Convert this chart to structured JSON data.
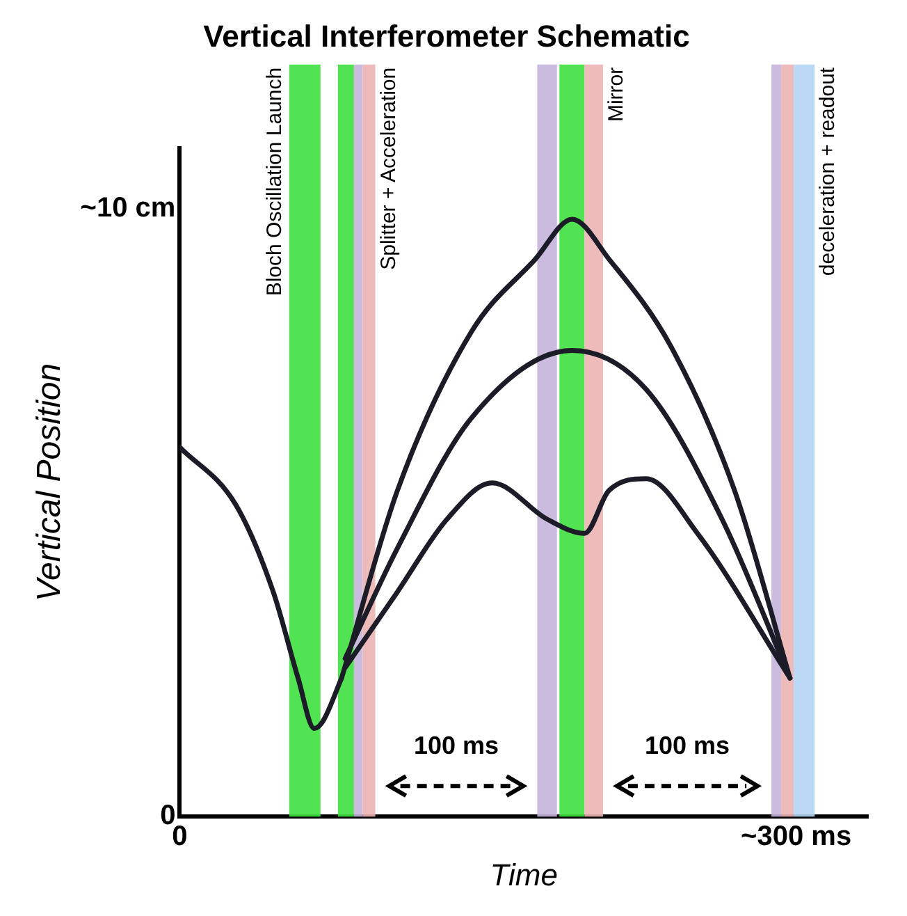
{
  "chart_data": {
    "type": "line",
    "title": "Vertical Interferometer Schematic",
    "xlabel": "Time",
    "ylabel": "Vertical Position",
    "xlim": [
      0,
      335
    ],
    "ylim": [
      0,
      11
    ],
    "xticks": [
      0,
      {
        "value": 300,
        "label": "~300 ms"
      }
    ],
    "yticks": [
      {
        "value": 0,
        "label": "0"
      },
      {
        "value": 10,
        "label": "~10 cm"
      }
    ],
    "grid": false,
    "legend": false,
    "marker": "none",
    "line_style": "solid",
    "series": [
      {
        "color": "#1c1c28",
        "x": [
          0,
          27.3,
          45.5,
          57.6,
          65.5,
          69.7,
          78.8
        ],
        "values": [
          6.08,
          5.13,
          3.7,
          2.28,
          1.45,
          1.57,
          2.28
        ]
      },
      {
        "color": "#1c1c28",
        "x": [
          78.8,
          106,
          142,
          173,
          191,
          209,
          239,
          270,
          297
        ],
        "values": [
          2.28,
          5.37,
          7.98,
          9.17,
          9.83,
          9.17,
          7.74,
          5.37,
          2.28
        ]
      },
      {
        "color": "#1c1c28",
        "x": [
          80.5,
          106,
          142,
          191,
          227,
          264,
          297
        ],
        "values": [
          2.6,
          4.42,
          6.56,
          7.67,
          7.03,
          4.89,
          2.28
        ]
      },
      {
        "color": "#1c1c28",
        "x": [
          80.5,
          106,
          130,
          152,
          179,
          197,
          209,
          227,
          252,
          297
        ],
        "values": [
          2.45,
          3.7,
          4.89,
          5.49,
          4.89,
          4.66,
          5.37,
          5.56,
          4.66,
          2.28
        ]
      }
    ],
    "bands": [
      {
        "axis": "x",
        "from": 53.3,
        "to": 68.5,
        "color": "#3ee03e",
        "label": "Bloch Oscillation Launch"
      },
      {
        "axis": "x",
        "from": 77,
        "to": 84.8,
        "color": "#3ee03e"
      },
      {
        "axis": "x",
        "from": 84.8,
        "to": 89,
        "color": "#c4b4dc"
      },
      {
        "axis": "x",
        "from": 89,
        "to": 95.2,
        "color": "#ecb4b4",
        "label": "Splitter + Acceleration"
      },
      {
        "axis": "x",
        "from": 174,
        "to": 183.6,
        "color": "#c4b4dc"
      },
      {
        "axis": "x",
        "from": 184.8,
        "to": 197,
        "color": "#3ee03e"
      },
      {
        "axis": "x",
        "from": 197,
        "to": 206,
        "color": "#ecb4b4",
        "label": "Mirror"
      },
      {
        "axis": "x",
        "from": 288,
        "to": 292.7,
        "color": "#c4b4dc"
      },
      {
        "axis": "x",
        "from": 292.7,
        "to": 298.8,
        "color": "#ecb4b4"
      },
      {
        "axis": "x",
        "from": 298.8,
        "to": 309,
        "color": "#b4d4f4",
        "label": "deceleration + readout"
      }
    ],
    "annotations": [
      "100 ms",
      "100 ms"
    ]
  }
}
